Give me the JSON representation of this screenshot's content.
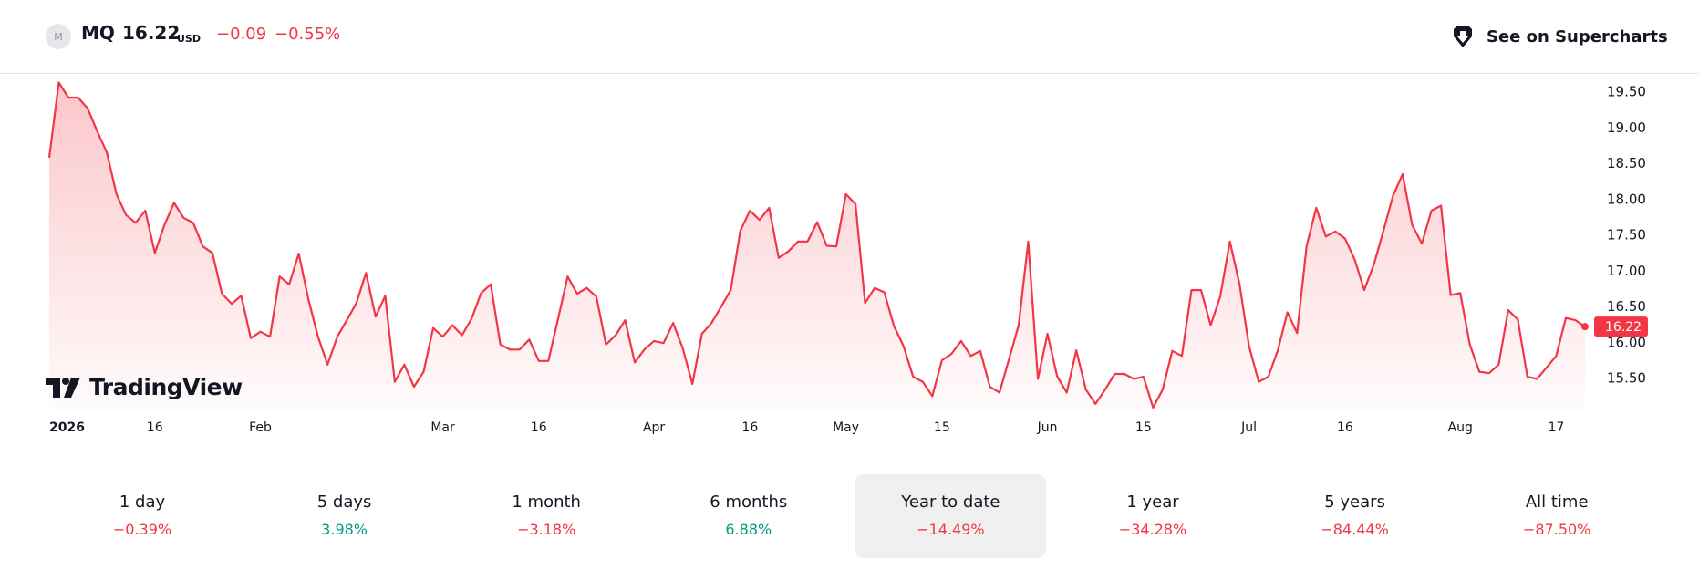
{
  "header": {
    "logo_letter": "M",
    "symbol": "MQ",
    "price": "16.22",
    "currency": "USD",
    "change": "−0.09",
    "change_percent": "−0.55%",
    "supercharts_label": "See on Supercharts"
  },
  "watermark": "TradingView",
  "last_price_label": "16.22",
  "colors": {
    "line": "#f23645",
    "negative": "#f23645",
    "positive": "#089981"
  },
  "periods": [
    {
      "label": "1 day",
      "value": "−0.39%",
      "sign": "neg",
      "active": false
    },
    {
      "label": "5 days",
      "value": "3.98%",
      "sign": "pos",
      "active": false
    },
    {
      "label": "1 month",
      "value": "−3.18%",
      "sign": "neg",
      "active": false
    },
    {
      "label": "6 months",
      "value": "6.88%",
      "sign": "pos",
      "active": false
    },
    {
      "label": "Year to date",
      "value": "−14.49%",
      "sign": "neg",
      "active": true
    },
    {
      "label": "1 year",
      "value": "−34.28%",
      "sign": "neg",
      "active": false
    },
    {
      "label": "5 years",
      "value": "−84.44%",
      "sign": "neg",
      "active": false
    },
    {
      "label": "All time",
      "value": "−87.50%",
      "sign": "neg",
      "active": false
    }
  ],
  "chart_data": {
    "type": "area",
    "title": "",
    "xlabel": "",
    "ylabel": "",
    "ylim": [
      15.05,
      19.7
    ],
    "y_ticks": [
      "19.50",
      "19.00",
      "18.50",
      "18.00",
      "17.50",
      "17.00",
      "16.50",
      "16.00",
      "15.50"
    ],
    "x_ticks": [
      {
        "label": "2026",
        "index": 0,
        "bold": true
      },
      {
        "label": "16",
        "index": 11
      },
      {
        "label": "Feb",
        "index": 22
      },
      {
        "label": "Mar",
        "index": 41
      },
      {
        "label": "16",
        "index": 51
      },
      {
        "label": "Apr",
        "index": 63
      },
      {
        "label": "16",
        "index": 73
      },
      {
        "label": "May",
        "index": 83
      },
      {
        "label": "15",
        "index": 93
      },
      {
        "label": "Jun",
        "index": 104
      },
      {
        "label": "15",
        "index": 114
      },
      {
        "label": "Jul",
        "index": 125
      },
      {
        "label": "16",
        "index": 135
      },
      {
        "label": "Aug",
        "index": 147
      },
      {
        "label": "17",
        "index": 157
      }
    ],
    "series": [
      {
        "values": [
          18.58,
          19.63,
          19.42,
          19.42,
          19.27,
          18.95,
          18.65,
          18.07,
          17.78,
          17.67,
          17.84,
          17.25,
          17.64,
          17.95,
          17.74,
          17.67,
          17.34,
          17.25,
          16.68,
          16.54,
          16.65,
          16.06,
          16.15,
          16.08,
          16.92,
          16.81,
          17.24,
          16.6,
          16.08,
          15.69,
          16.08,
          16.31,
          16.55,
          16.97,
          16.36,
          16.65,
          15.45,
          15.69,
          15.38,
          15.59,
          16.2,
          16.08,
          16.24,
          16.1,
          16.33,
          16.69,
          16.81,
          15.97,
          15.9,
          15.9,
          16.04,
          15.74,
          15.74,
          16.32,
          16.92,
          16.68,
          16.76,
          16.64,
          15.97,
          16.1,
          16.31,
          15.72,
          15.9,
          16.02,
          15.99,
          16.27,
          15.92,
          15.42,
          16.12,
          16.27,
          16.5,
          16.73,
          17.56,
          17.84,
          17.71,
          17.88,
          17.18,
          17.27,
          17.41,
          17.41,
          17.68,
          17.35,
          17.34,
          18.07,
          17.93,
          16.55,
          16.76,
          16.7,
          16.23,
          15.95,
          15.52,
          15.45,
          15.25,
          15.75,
          15.84,
          16.02,
          15.81,
          15.88,
          15.38,
          15.3,
          15.77,
          16.24,
          17.41,
          15.49,
          16.12,
          15.53,
          15.3,
          15.89,
          15.34,
          15.14,
          15.34,
          15.56,
          15.56,
          15.49,
          15.52,
          15.09,
          15.34,
          15.88,
          15.81,
          16.73,
          16.73,
          16.24,
          16.64,
          17.41,
          16.82,
          15.95,
          15.45,
          15.52,
          15.89,
          16.42,
          16.13,
          17.35,
          17.88,
          17.48,
          17.55,
          17.45,
          17.16,
          16.73,
          17.09,
          17.56,
          18.05,
          18.35,
          17.64,
          17.38,
          17.84,
          17.91,
          16.66,
          16.69,
          15.97,
          15.59,
          15.57,
          15.69,
          16.45,
          16.32,
          15.52,
          15.49,
          15.65,
          15.81,
          16.34,
          16.31,
          16.22
        ]
      }
    ],
    "grid": false,
    "legend": "none"
  }
}
